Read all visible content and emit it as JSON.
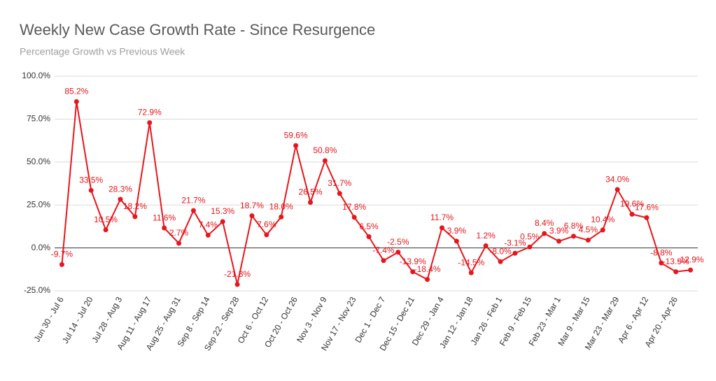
{
  "chart_data": {
    "type": "line",
    "title": "Weekly New Case Growth Rate - Since Resurgence",
    "subtitle": "Percentage Growth vs Previous Week",
    "color": "#e8151b",
    "grid": true,
    "categories": [
      "Jun 30 - Jul 6",
      null,
      "Jul 14 - Jul 20",
      null,
      "Jul 28 - Aug 3",
      null,
      "Aug 11 - Aug 17",
      null,
      "Aug 25 - Aug 31",
      null,
      "Sep 8 - Sep 14",
      null,
      "Sep 22 - Sep 28",
      null,
      "Oct 6 - Oct 12",
      null,
      "Oct 20 - Oct 26",
      null,
      "Nov 3 - Nov 9",
      null,
      "Nov 17 - Nov 23",
      null,
      "Dec 1 - Dec 7",
      null,
      "Dec 15 - Dec 21",
      null,
      "Dec 29 - Jan 4",
      null,
      "Jan 12 - Jan 18",
      null,
      "Jan 26 - Feb 1",
      null,
      "Feb 9 - Feb 15",
      null,
      "Feb 23 - Mar 1",
      null,
      "Mar 9 - Mar 15",
      null,
      "Mar 23 - Mar 29",
      null,
      "Apr 6 - Apr 12",
      null,
      "Apr 20 - Apr 26",
      null
    ],
    "values": [
      -9.7,
      85.2,
      33.5,
      10.5,
      28.3,
      18.2,
      72.9,
      11.6,
      2.7,
      21.7,
      7.4,
      15.3,
      -21.3,
      18.7,
      7.6,
      18.0,
      59.6,
      26.5,
      50.8,
      31.7,
      17.8,
      6.5,
      -7.4,
      -2.5,
      -13.9,
      -18.4,
      11.7,
      3.9,
      -14.5,
      1.2,
      -8.0,
      -3.1,
      0.5,
      8.4,
      3.9,
      6.8,
      4.5,
      10.4,
      34.0,
      19.6,
      17.6,
      -8.8,
      -13.9,
      -12.9
    ],
    "value_labels": [
      "-9.7%",
      "85.2%",
      "33.5%",
      "10.5%",
      "28.3%",
      "18.2%",
      "72.9%",
      "11.6%",
      "2.7%",
      "21.7%",
      "7.4%",
      "15.3%",
      "-21.3%",
      "18.7%",
      "7.6%",
      "18.0%",
      "59.6%",
      "26.5%",
      "50.8%",
      "31.7%",
      "17.8%",
      "6.5%",
      "-7.4%",
      "-2.5%",
      "-13.9%",
      "-18.4%",
      "11.7%",
      "3.9%",
      "-14.5%",
      "1.2%",
      "-8.0%",
      "-3.1%",
      "0.5%",
      "8.4%",
      "3.9%",
      "6.8%",
      "4.5%",
      "10.4%",
      "34.0%",
      "19.6%",
      "17.6%",
      "-8.8%",
      "-13.9%",
      "-12.9%"
    ],
    "ylim": [
      -25,
      100
    ],
    "yticks": [
      {
        "value": -25,
        "label": "-25.0%"
      },
      {
        "value": 0,
        "label": "0.0%"
      },
      {
        "value": 25,
        "label": "25.0%"
      },
      {
        "value": 50,
        "label": "50.0%"
      },
      {
        "value": 75,
        "label": "75.0%"
      },
      {
        "value": 100,
        "label": "100.0%"
      }
    ]
  }
}
